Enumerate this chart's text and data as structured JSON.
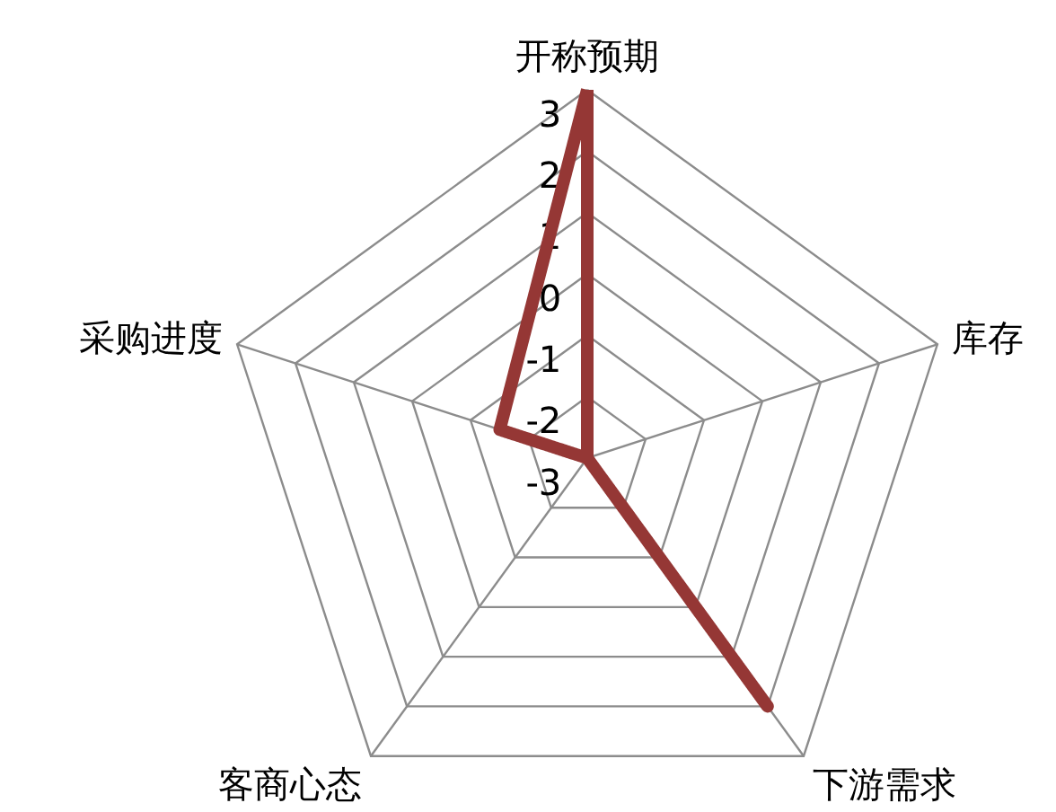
{
  "chart_data": {
    "type": "radar",
    "categories": [
      "开称预期",
      "库存",
      "下游需求",
      "客商心态",
      "采购进度"
    ],
    "series": [
      {
        "color": "#953735",
        "values": [
          3,
          -3,
          2,
          -3,
          -1.5
        ]
      }
    ],
    "ylim": [
      -3,
      3
    ],
    "yticks": [
      -3,
      -2,
      -1,
      0,
      1,
      2,
      3
    ],
    "grid": true,
    "marker": "none",
    "line_style": "solid"
  }
}
